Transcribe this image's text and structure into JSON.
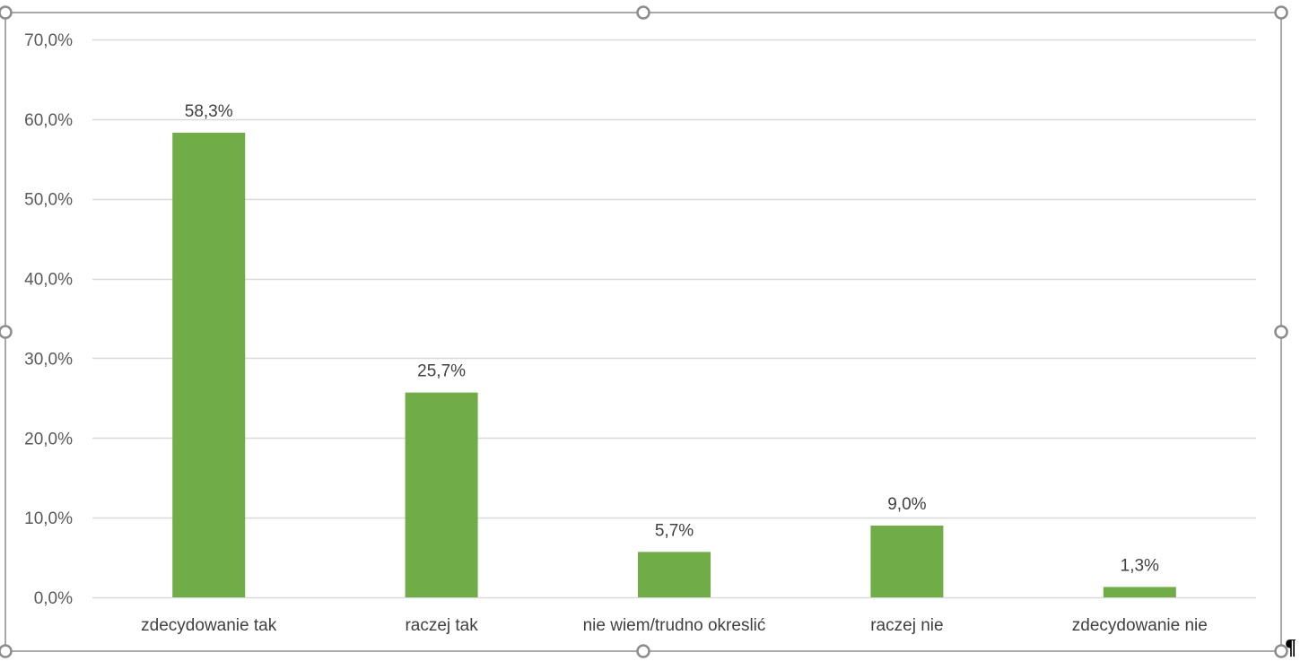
{
  "chart_data": {
    "type": "bar",
    "categories": [
      "zdecydowanie tak",
      "raczej tak",
      "nie wiem/trudno okreslić",
      "raczej nie",
      "zdecydowanie nie"
    ],
    "values": [
      58.3,
      25.7,
      5.7,
      9.0,
      1.3
    ],
    "data_labels": [
      "58,3%",
      "25,7%",
      "5,7%",
      "9,0%",
      "1,3%"
    ],
    "yticks": [
      0,
      10,
      20,
      30,
      40,
      50,
      60,
      70
    ],
    "ytick_labels": [
      "0,0%",
      "10,0%",
      "20,0%",
      "30,0%",
      "40,0%",
      "50,0%",
      "60,0%",
      "70,0%"
    ],
    "ylim": [
      0,
      70
    ],
    "grid": true,
    "legend": "none",
    "bar_color": "#70ad47",
    "title": "",
    "xlabel": "",
    "ylabel": ""
  },
  "document": {
    "paragraph_mark": "¶"
  },
  "colors": {
    "bar": "#70ad47",
    "grid": "#d9d9d9",
    "frame": "#8c8c8c",
    "handle": "#8c8c8c",
    "text": "#595959"
  }
}
